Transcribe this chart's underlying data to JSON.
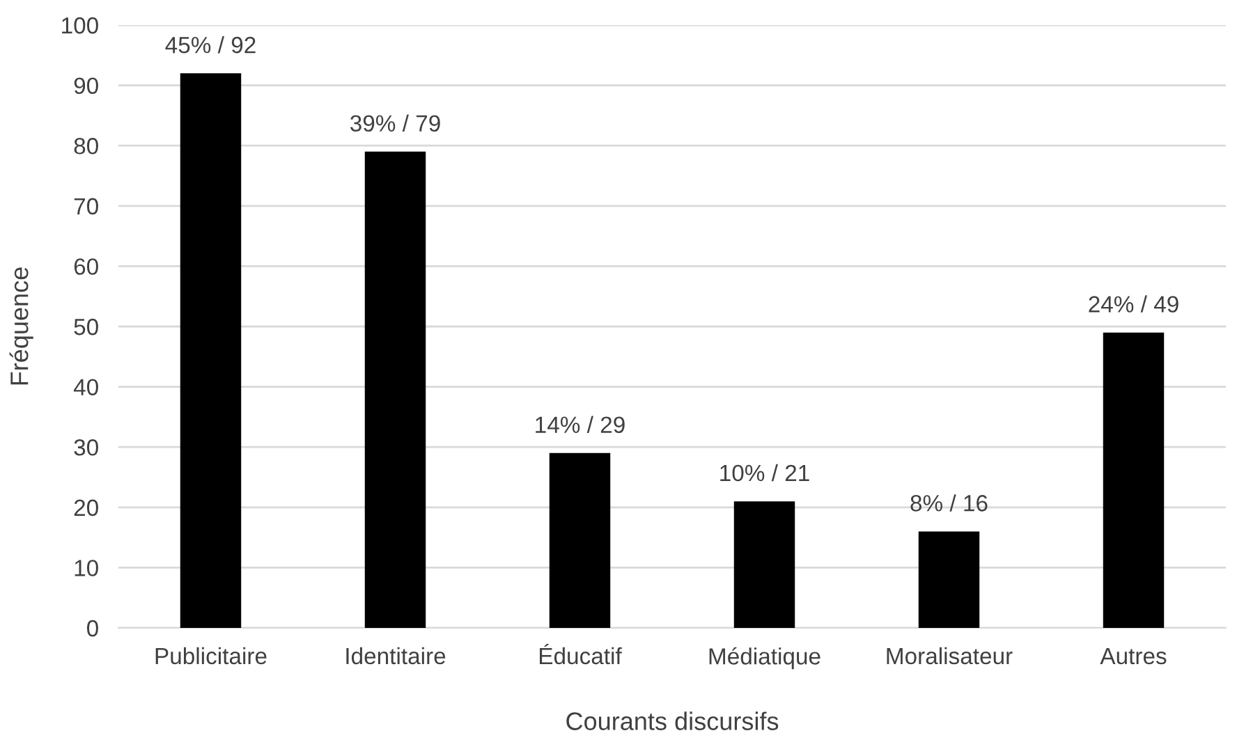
{
  "chart_data": {
    "type": "bar",
    "xlabel": "Courants discursifs",
    "ylabel": "Fréquence",
    "categories": [
      "Publicitaire",
      "Identitaire",
      "Éducatif",
      "Médiatique",
      "Moralisateur",
      "Autres"
    ],
    "values": [
      92,
      79,
      29,
      21,
      16,
      49
    ],
    "value_labels": [
      "45% / 92",
      "39% / 79",
      "14% / 29",
      "10% / 21",
      "8% / 16",
      "24% / 49"
    ],
    "color": "#000000",
    "ylim": [
      0,
      100
    ],
    "yticks": [
      0,
      10,
      20,
      30,
      40,
      50,
      60,
      70,
      80,
      90,
      100
    ],
    "grid": "y",
    "legend": false
  }
}
